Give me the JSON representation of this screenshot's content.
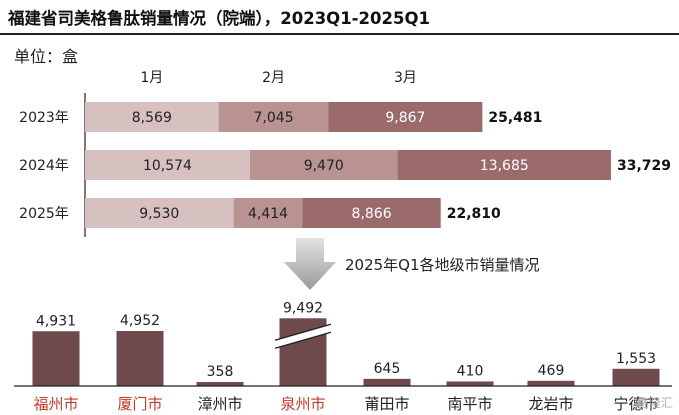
{
  "title": "福建省司美格鲁肽销量情况（院端），2023Q1-2025Q1",
  "unit": "单位：盒",
  "watermark": "格隆汇",
  "chart_data": [
    {
      "type": "bar",
      "orientation": "horizontal",
      "stacked": true,
      "categories": [
        "2023年",
        "2024年",
        "2025年"
      ],
      "series": [
        {
          "name": "1月",
          "values": [
            8569,
            10574,
            9530
          ],
          "color": "#d6c0c0"
        },
        {
          "name": "2月",
          "values": [
            7045,
            9470,
            4414
          ],
          "color": "#b99392"
        },
        {
          "name": "3月",
          "values": [
            9867,
            13685,
            8866
          ],
          "color": "#9b6b6c"
        }
      ],
      "totals": [
        25481,
        33729,
        22810
      ],
      "legend_placement": "top"
    },
    {
      "type": "bar",
      "title": "2025年Q1各地级市销量情况",
      "categories": [
        "福州市",
        "厦门市",
        "漳州市",
        "泉州市",
        "莆田市",
        "南平市",
        "龙岩市",
        "宁德市"
      ],
      "values": [
        4931,
        4952,
        358,
        9492,
        645,
        410,
        469,
        1553
      ],
      "highlighted": [
        "福州市",
        "厦门市",
        "泉州市"
      ],
      "highlight_color": "#c0392b",
      "bar_color": "#6e4a4c",
      "broken_axis": true
    }
  ]
}
